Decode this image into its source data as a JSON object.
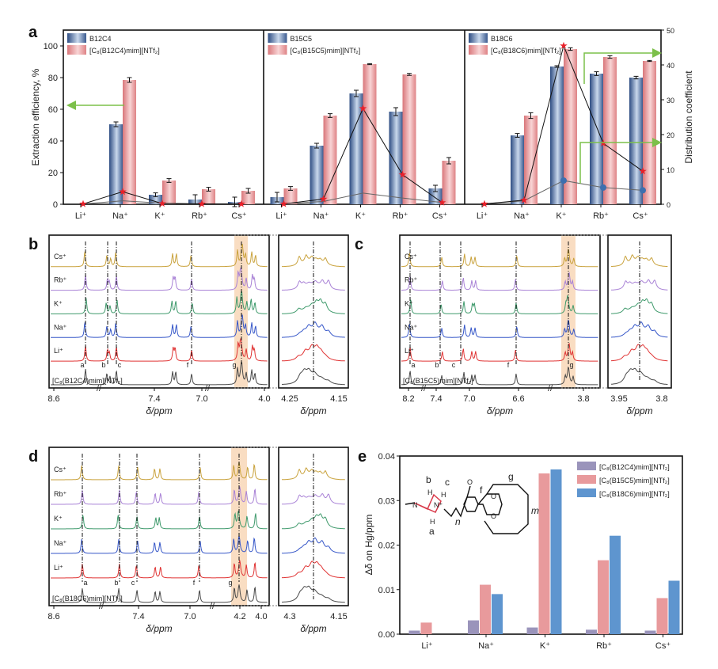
{
  "panel_letters": [
    "a",
    "b",
    "c",
    "d",
    "e"
  ],
  "colors": {
    "crown_bar": "#3d5f95",
    "il_bar": "#e08588",
    "star": "#e8202a",
    "arrow": "#7cc04a",
    "highlight": "#f6cfa8",
    "e_b12c4": "#9a94bb",
    "e_b15c5": "#e89a9c",
    "e_b18c6": "#5e95cf",
    "traces": [
      "#c9a23c",
      "#a982d6",
      "#3f9a6c",
      "#3556c8",
      "#e03434",
      "#4a4a4a"
    ]
  },
  "chart_data": [
    {
      "id": "a",
      "type": "bar",
      "ylabel": "Extraction efficiency, %",
      "y2label": "Distribution coefficient",
      "ylim": [
        0,
        110
      ],
      "y2lim": [
        0,
        50
      ],
      "yticks": [
        "0",
        "20",
        "40",
        "60",
        "80",
        "100"
      ],
      "y2ticks": [
        "0",
        "10",
        "20",
        "30",
        "40",
        "50"
      ],
      "categories": [
        "Li⁺",
        "Na⁺",
        "K⁺",
        "Rb⁺",
        "Cs⁺"
      ],
      "groups": [
        {
          "crown": "B12C4",
          "il": "[C₈(B12C4)mim][NTf₂]",
          "crown_eff": [
            0,
            50.5,
            6,
            3,
            1.5
          ],
          "crown_err": [
            0,
            1.5,
            1.2,
            3,
            3
          ],
          "il_eff": [
            0,
            78.5,
            15,
            9.5,
            8.5
          ],
          "il_err": [
            0,
            1.5,
            1.2,
            1.2,
            1.5
          ],
          "crown_D": [
            0.1,
            1.0,
            0.3,
            0.1,
            0.1
          ],
          "il_D": [
            0.1,
            3.6,
            0.2,
            0.1,
            0.1
          ]
        },
        {
          "crown": "B15C5",
          "il": "[C₈(B15C5)mim][NTf₂]",
          "crown_eff": [
            4.5,
            37,
            70,
            58.5,
            10
          ],
          "crown_err": [
            3,
            1.5,
            2,
            2.5,
            2
          ],
          "il_eff": [
            10,
            56,
            88.5,
            82,
            27.5
          ],
          "il_err": [
            1.2,
            1.2,
            0.3,
            0.6,
            2
          ],
          "crown_D": [
            0.2,
            0.8,
            3.2,
            1.8,
            0.5
          ],
          "il_D": [
            0.1,
            1.5,
            27.5,
            8.5,
            0.5
          ]
        },
        {
          "crown": "B18C6",
          "il": "[C₈(B18C6)mim][NTf₂]",
          "crown_eff": [
            0,
            43.5,
            87,
            82.5,
            80
          ],
          "crown_err": [
            0,
            1.2,
            0.5,
            1.2,
            0.8
          ],
          "il_eff": [
            0,
            56,
            98,
            93,
            90.5
          ],
          "il_err": [
            0,
            1.8,
            0.8,
            0.8,
            0.3
          ],
          "crown_D": [
            0.1,
            1.0,
            6.8,
            4.8,
            4.0
          ],
          "il_D": [
            0.1,
            1.2,
            45.5,
            17.5,
            9.5
          ]
        }
      ]
    },
    {
      "id": "e",
      "type": "bar",
      "ylabel": "Δδ on Hg/ppm",
      "ylim": [
        0,
        0.04
      ],
      "yticks": [
        "0.00",
        "0.01",
        "0.02",
        "0.03",
        "0.04"
      ],
      "categories": [
        "Li⁺",
        "Na⁺",
        "K⁺",
        "Rb⁺",
        "Cs⁺"
      ],
      "series": [
        {
          "name": "[C₈(B12C4)mim][NTf₂]",
          "values": [
            0.0008,
            0.0031,
            0.0015,
            0.001,
            0.0008
          ]
        },
        {
          "name": "[C₈(B15C5)mim][NTf₂]",
          "values": [
            0.0026,
            0.0111,
            0.0361,
            0.0166,
            0.0081
          ]
        },
        {
          "name": "[C₈(B18C6)mim][NTf₂]",
          "values": [
            0,
            0.009,
            0.037,
            0.0221,
            0.012
          ]
        }
      ],
      "structure_labels": {
        "a": "a",
        "b": "b",
        "c": "c",
        "f": "f",
        "g": "g",
        "n": "n",
        "m": "m",
        "N1": "N",
        "N2": "N⁺",
        "O": "O",
        "H": "H"
      }
    }
  ],
  "nmr": {
    "xlabel": "δ/ppm",
    "trace_labels": [
      "Cs⁺",
      "Rb⁺",
      "K⁺",
      "Na⁺",
      "Li⁺"
    ],
    "b": {
      "compound": "[C₈(B12C4)mim][NTf₂]",
      "ticks": [
        "8.6",
        "7.4",
        "7.0",
        "4.0"
      ],
      "inset_ticks": [
        "4.25",
        "4.15"
      ],
      "peaks": [
        "a",
        "b",
        "c",
        "f",
        "g"
      ]
    },
    "c": {
      "compound": "[C₈(B15C5)mim][NTf₂]",
      "ticks": [
        "8.2",
        "7.4",
        "7.0",
        "6.6",
        "3.8"
      ],
      "inset_ticks": [
        "3.95",
        "3.8"
      ],
      "peaks": [
        "a",
        "b",
        "c",
        "f",
        "g"
      ]
    },
    "d": {
      "compound": "[C₈(B18C6)mim][NTf₂]",
      "ticks": [
        "8.6",
        "7.4",
        "7.0",
        "4.2",
        "4.0"
      ],
      "inset_ticks": [
        "4.3",
        "4.15"
      ],
      "peaks": [
        "a",
        "b",
        "c",
        "f",
        "g"
      ]
    }
  }
}
